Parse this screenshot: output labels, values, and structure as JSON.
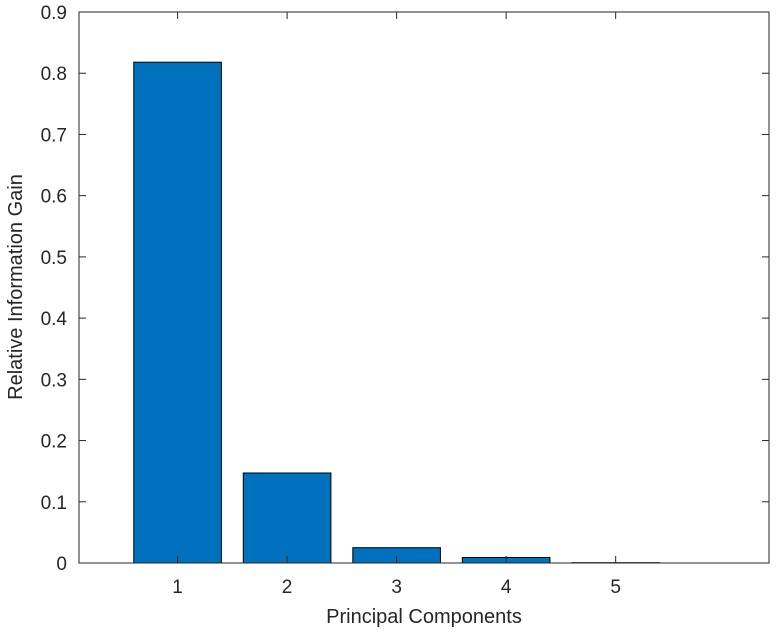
{
  "chart_data": {
    "type": "bar",
    "categories": [
      "1",
      "2",
      "3",
      "4",
      "5"
    ],
    "values": [
      0.818,
      0.147,
      0.025,
      0.009,
      0.0005
    ],
    "xlabel": "Principal Components",
    "ylabel": "Relative Information Gain",
    "ylim": [
      0,
      0.9
    ],
    "yticks": [
      "0",
      "0.1",
      "0.2",
      "0.3",
      "0.4",
      "0.5",
      "0.6",
      "0.7",
      "0.8",
      "0.9"
    ],
    "grid": false,
    "bar_color": "#0072BD",
    "edge_color": "#000000"
  }
}
